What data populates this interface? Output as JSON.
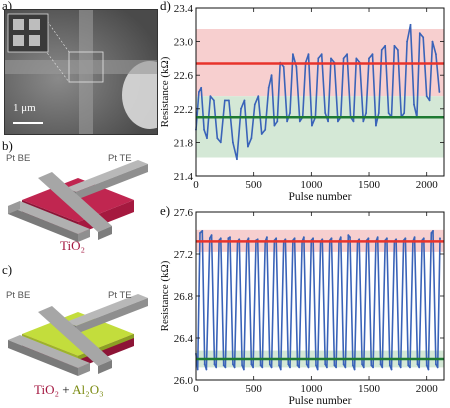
{
  "panel_labels": {
    "a": "a)",
    "b": "b)",
    "c": "c)",
    "d": "d)",
    "e": "e)"
  },
  "sem": {
    "scale_bar": "1 μm"
  },
  "device_b": {
    "bottom_electrode": "Pt BE",
    "top_electrode": "Pt TE",
    "material": "TiO₂"
  },
  "device_c": {
    "bottom_electrode": "Pt BE",
    "top_electrode": "Pt TE",
    "material_1": "TiO₂",
    "material_join": " + ",
    "material_2": "Al₂O₃"
  },
  "colors": {
    "trace": "#3a63b8",
    "upper_line": "#e8332b",
    "lower_line": "#1e7a32",
    "upper_band": "#f7cfcf",
    "lower_band": "#d4e8d6",
    "device_red": "#a5193f",
    "device_green": "#c3dd3c",
    "pt_gray": "#8c8c8c"
  },
  "chart_data": [
    {
      "type": "line",
      "panel": "d",
      "xlabel": "Pulse number",
      "ylabel": "Resistance (kΩ)",
      "xlim": [
        0,
        2150
      ],
      "ylim": [
        21.4,
        23.4
      ],
      "xticks": [
        0,
        500,
        1000,
        1500,
        2000
      ],
      "yticks": [
        21.4,
        21.8,
        22.2,
        22.6,
        23.0,
        23.4
      ],
      "ytick_labels": [
        "21.4",
        "21.8",
        "22.2",
        "22.6",
        "23.0",
        "23.4"
      ],
      "reference_lines": [
        {
          "y": 22.74,
          "color": "red"
        },
        {
          "y": 22.1,
          "color": "green"
        }
      ],
      "bands": [
        {
          "from": 22.35,
          "to": 23.15,
          "color": "red"
        },
        {
          "from": 21.62,
          "to": 22.35,
          "color": "green"
        }
      ],
      "series": [
        {
          "x": [
            0,
            25,
            45,
            70,
            95,
            125,
            155,
            185,
            215,
            250,
            285,
            320,
            355,
            390,
            420,
            450,
            480,
            510,
            540,
            570,
            600,
            630,
            655,
            680,
            705,
            730,
            760,
            790,
            815,
            840,
            870,
            900,
            925,
            950,
            975,
            1005,
            1035,
            1060,
            1090,
            1120,
            1145,
            1170,
            1200,
            1230,
            1255,
            1280,
            1310,
            1340,
            1365,
            1390,
            1420,
            1450,
            1475,
            1500,
            1530,
            1560,
            1585,
            1610,
            1640,
            1670,
            1695,
            1720,
            1750,
            1780,
            1805,
            1830,
            1860,
            1890,
            1915,
            1940,
            1970,
            2000,
            2025,
            2050,
            2080,
            2110
          ],
          "y": [
            21.95,
            22.4,
            22.45,
            21.95,
            21.85,
            22.35,
            22.3,
            21.85,
            21.8,
            22.3,
            22.3,
            21.8,
            21.6,
            22.2,
            22.3,
            21.75,
            21.85,
            22.25,
            22.35,
            21.9,
            21.95,
            22.45,
            22.6,
            22.0,
            22.05,
            22.75,
            22.7,
            22.05,
            22.15,
            22.85,
            22.7,
            22.05,
            22.1,
            22.75,
            22.85,
            22.0,
            22.1,
            22.8,
            22.85,
            22.15,
            22.05,
            22.8,
            22.75,
            22.05,
            22.1,
            22.8,
            22.85,
            22.1,
            22.05,
            22.8,
            22.75,
            22.05,
            22.15,
            22.8,
            22.85,
            22.0,
            22.15,
            22.9,
            22.95,
            22.15,
            22.1,
            22.95,
            22.9,
            22.1,
            22.15,
            23.0,
            23.2,
            22.25,
            22.1,
            23.1,
            23.05,
            22.35,
            22.3,
            23.0,
            22.85,
            22.4
          ]
        }
      ]
    },
    {
      "type": "line",
      "panel": "e",
      "xlabel": "Pulse number",
      "ylabel": "Resistance (kΩ)",
      "xlim": [
        0,
        2150
      ],
      "ylim": [
        26.0,
        27.6
      ],
      "xticks": [
        0,
        500,
        1000,
        1500,
        2000
      ],
      "yticks": [
        26.0,
        26.4,
        26.8,
        27.2,
        27.6
      ],
      "ytick_labels": [
        "26.0",
        "26.4",
        "26.8",
        "27.2",
        "27.6"
      ],
      "reference_lines": [
        {
          "y": 27.32,
          "color": "red"
        },
        {
          "y": 26.2,
          "color": "green"
        }
      ],
      "bands": [
        {
          "from": 27.22,
          "to": 27.43,
          "color": "red"
        },
        {
          "from": 26.12,
          "to": 26.28,
          "color": "green"
        }
      ],
      "series": [
        {
          "x": [
            0,
            15,
            35,
            55,
            75,
            90,
            120,
            135,
            160,
            175,
            200,
            215,
            240,
            255,
            280,
            295,
            320,
            335,
            360,
            375,
            400,
            415,
            440,
            455,
            480,
            495,
            520,
            535,
            560,
            575,
            600,
            615,
            640,
            655,
            680,
            695,
            720,
            735,
            760,
            775,
            800,
            815,
            840,
            855,
            880,
            895,
            920,
            935,
            960,
            975,
            1000,
            1015,
            1040,
            1055,
            1080,
            1095,
            1120,
            1135,
            1160,
            1175,
            1200,
            1215,
            1240,
            1255,
            1280,
            1295,
            1320,
            1335,
            1360,
            1375,
            1400,
            1415,
            1440,
            1455,
            1480,
            1495,
            1520,
            1535,
            1560,
            1575,
            1600,
            1615,
            1640,
            1655,
            1680,
            1695,
            1720,
            1735,
            1760,
            1775,
            1800,
            1815,
            1840,
            1855,
            1880,
            1895,
            1920,
            1935,
            1960,
            1975,
            2000,
            2015,
            2040,
            2055,
            2080,
            2095,
            2115
          ],
          "y": [
            26.25,
            26.1,
            27.4,
            27.42,
            26.15,
            26.1,
            27.35,
            27.38,
            26.15,
            26.12,
            27.33,
            27.35,
            26.14,
            26.12,
            27.35,
            27.36,
            26.15,
            26.12,
            27.32,
            27.34,
            26.14,
            26.1,
            27.32,
            27.35,
            26.15,
            26.12,
            27.33,
            27.34,
            26.14,
            26.12,
            27.32,
            27.36,
            26.15,
            26.12,
            27.33,
            27.35,
            26.14,
            26.1,
            27.32,
            27.34,
            26.15,
            26.12,
            27.33,
            27.35,
            26.14,
            26.12,
            27.32,
            27.36,
            26.15,
            26.12,
            27.33,
            27.35,
            26.14,
            26.1,
            27.32,
            27.34,
            26.15,
            26.12,
            27.33,
            27.35,
            26.14,
            26.12,
            27.32,
            27.36,
            26.15,
            26.12,
            27.38,
            27.36,
            26.14,
            26.1,
            27.32,
            27.34,
            26.15,
            26.12,
            27.33,
            27.35,
            26.14,
            26.12,
            27.32,
            27.36,
            26.15,
            26.12,
            27.33,
            27.35,
            26.14,
            26.1,
            27.32,
            27.34,
            26.15,
            26.12,
            27.33,
            27.35,
            26.14,
            26.12,
            27.32,
            27.36,
            26.15,
            26.12,
            27.33,
            27.35,
            26.14,
            26.1,
            27.4,
            27.42,
            26.15,
            26.12,
            27.35
          ]
        }
      ]
    }
  ]
}
